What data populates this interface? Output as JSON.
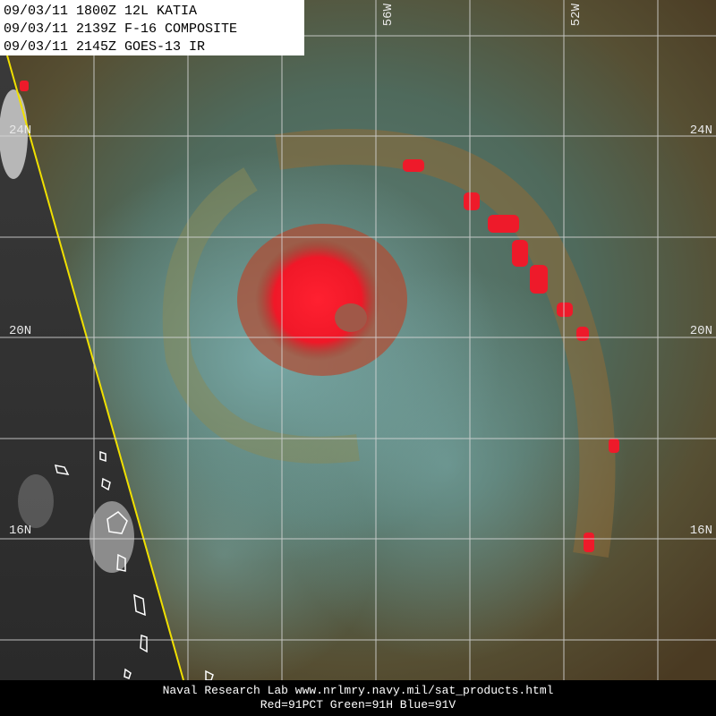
{
  "header": {
    "lines": [
      "09/03/11 1800Z 12L KATIA",
      "09/03/11 2139Z F-16 COMPOSITE",
      "09/03/11 2145Z GOES-13 IR"
    ]
  },
  "grid_labels": {
    "latitudes": [
      "24N",
      "20N",
      "16N"
    ],
    "longitudes": [
      "56W",
      "52W"
    ]
  },
  "footer": {
    "lines": [
      "Naval Research Lab  www.nrlmry.navy.mil/sat_products.html",
      "Red=91PCT  Green=91H  Blue=91V"
    ]
  }
}
